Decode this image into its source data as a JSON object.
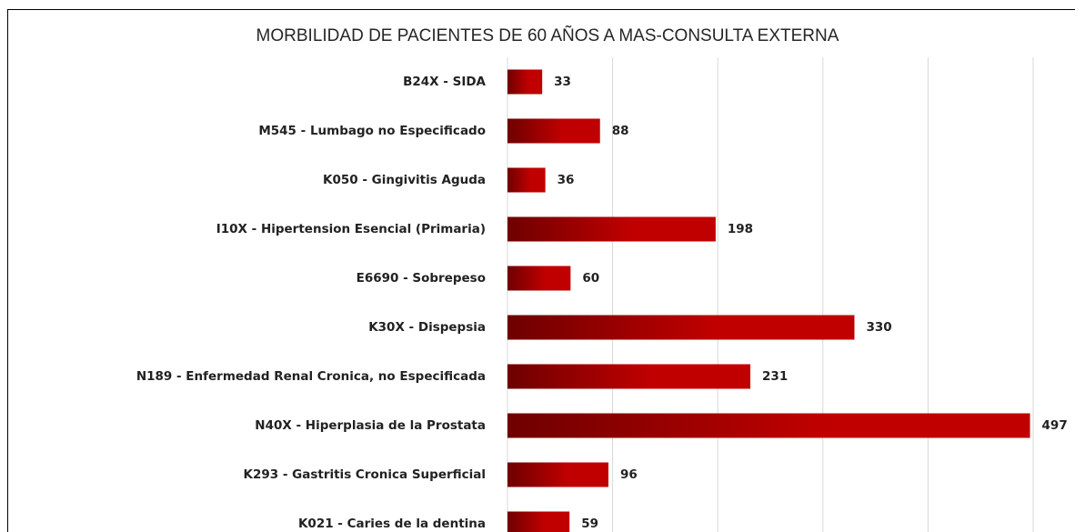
{
  "chart_data": {
    "type": "bar",
    "orientation": "horizontal",
    "title": "MORBILIDAD DE PACIENTES DE 60 AÑOS A MAS-CONSULTA EXTERNA",
    "categories": [
      "B24X - SIDA",
      "M545 - Lumbago no Especificado",
      "K050 - Gingivitis Aguda",
      "I10X - Hipertension Esencial (Primaria)",
      "E6690 - Sobrepeso",
      "K30X - Dispepsia",
      "N189 - Enfermedad Renal Cronica, no Especificada",
      "N40X - Hiperplasia de la Prostata",
      "K293 - Gastritis Cronica Superficial",
      "K021 - Caries de la dentina"
    ],
    "values": [
      33,
      88,
      36,
      198,
      60,
      330,
      231,
      497,
      96,
      59
    ],
    "color": "#c00000",
    "xlim": [
      0,
      500
    ],
    "xticks": [
      0,
      100,
      200,
      300,
      400,
      500
    ],
    "grid": true
  }
}
